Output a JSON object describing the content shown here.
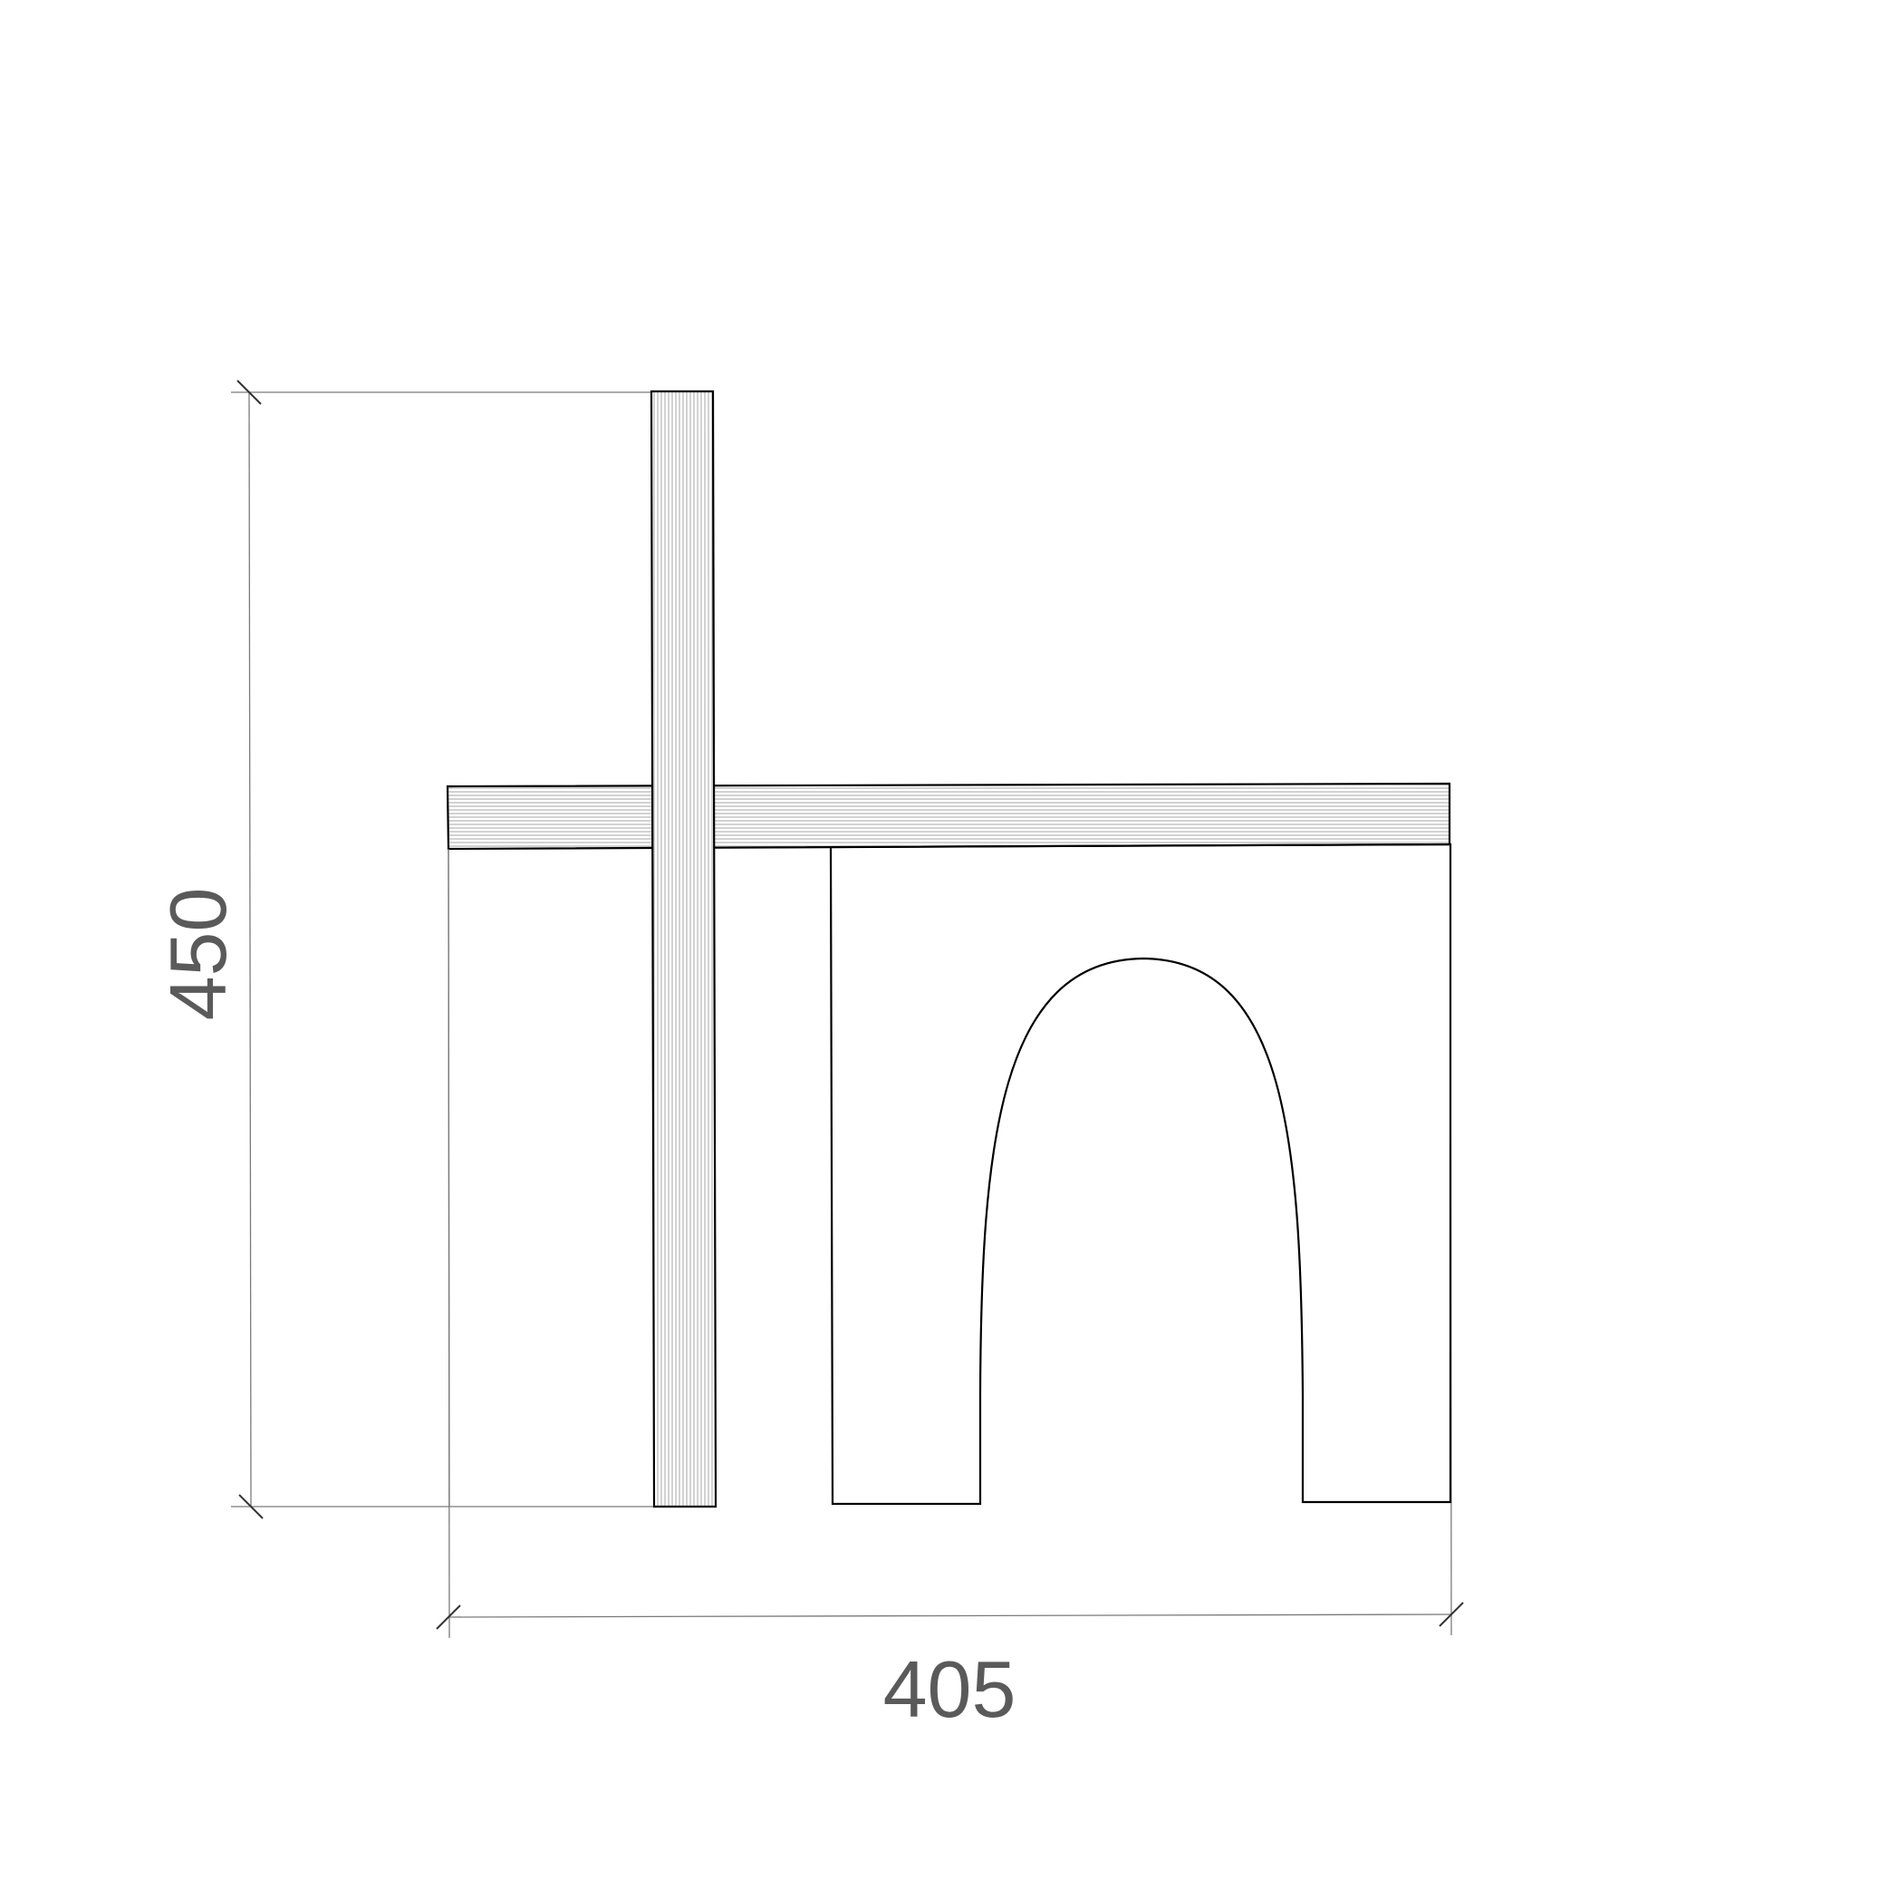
{
  "drawing": {
    "subject": "chair-side-elevation",
    "line_color": "#000000",
    "dimension_color": "#5a5a5a"
  },
  "dimensions": {
    "height_label": "450",
    "width_label": "405"
  }
}
